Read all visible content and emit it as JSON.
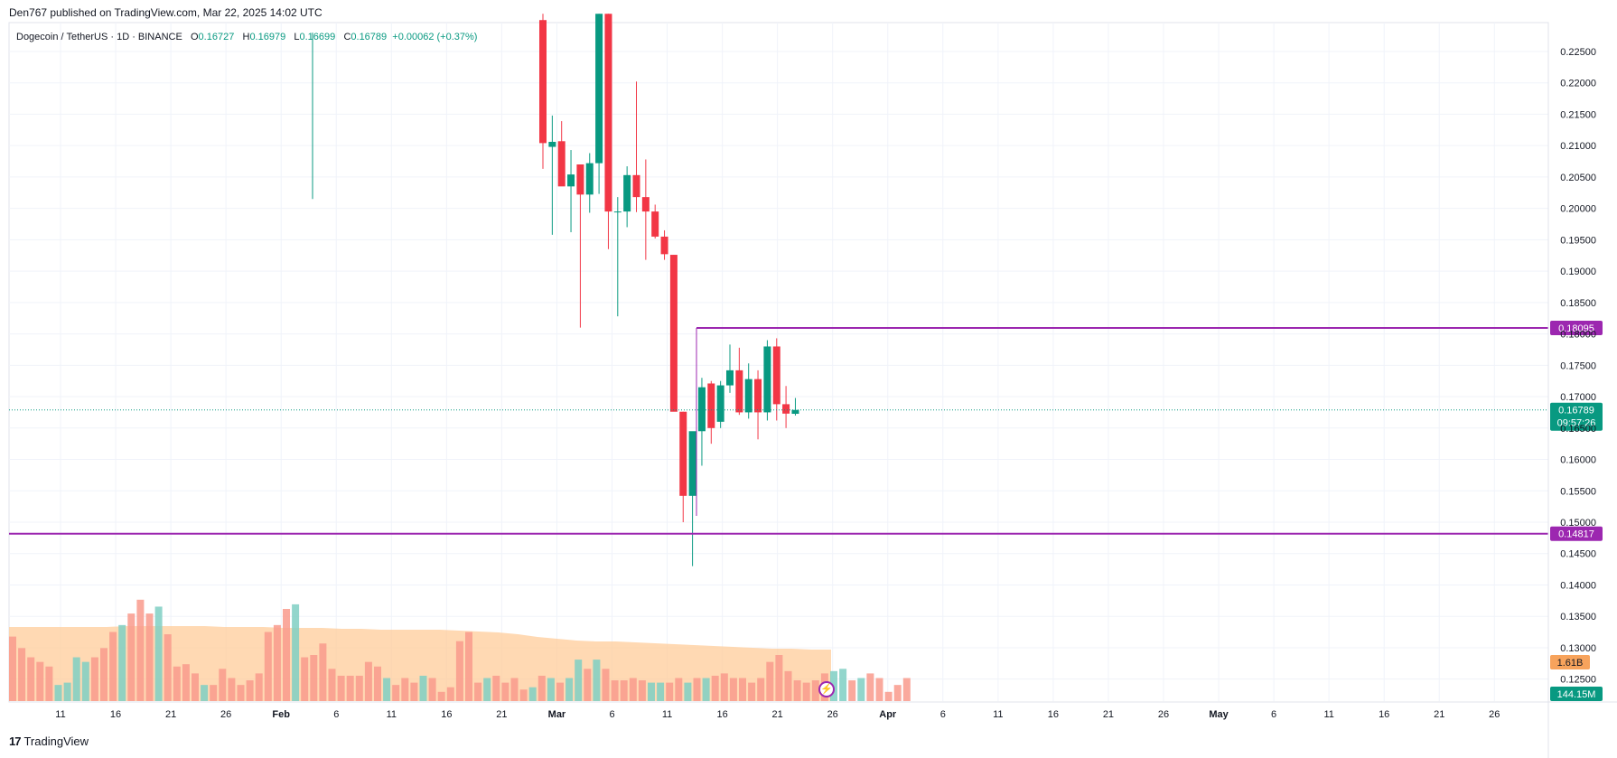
{
  "published": "Den767 published on TradingView.com, Mar 22, 2025 14:02 UTC",
  "legend": {
    "symbol": "Dogecoin / TetherUS · 1D · BINANCE",
    "o_label": "O",
    "o": "0.16727",
    "h_label": "H",
    "h": "0.16979",
    "l_label": "L",
    "l": "0.16699",
    "c_label": "C",
    "c": "0.16789",
    "change": "+0.00062 (+0.37%)"
  },
  "footer": {
    "logo_mark": "17",
    "logo_text": "TradingView"
  },
  "colors": {
    "up": "#089981",
    "down": "#f23645",
    "level": "#9c27b0",
    "volume_ma": "#ffcc99"
  },
  "chart_data": {
    "type": "candlestick",
    "title": "Dogecoin / TetherUS · 1D · BINANCE",
    "ylim": [
      0.1215,
      0.2296
    ],
    "y_ticks": [
      "0.22500",
      "0.22000",
      "0.21500",
      "0.21000",
      "0.20500",
      "0.20000",
      "0.19500",
      "0.19000",
      "0.18500",
      "0.18000",
      "0.17500",
      "0.17000",
      "0.16500",
      "0.16000",
      "0.15500",
      "0.15000",
      "0.14500",
      "0.14000",
      "0.13500",
      "0.13000",
      "0.12500"
    ],
    "x_ticks": [
      "11",
      "16",
      "21",
      "26",
      "Feb",
      "6",
      "11",
      "16",
      "21",
      "Mar",
      "6",
      "11",
      "16",
      "21",
      "26",
      "Apr",
      "6",
      "11",
      "16",
      "21",
      "26",
      "May",
      "6",
      "11",
      "16",
      "21",
      "26"
    ],
    "candles": [
      {
        "o": 0.23,
        "h": 0.231,
        "l": 0.2063,
        "c": 0.2104
      },
      {
        "o": 0.2098,
        "h": 0.2148,
        "l": 0.1958,
        "c": 0.2106
      },
      {
        "o": 0.2107,
        "h": 0.2139,
        "l": 0.2036,
        "c": 0.2035
      },
      {
        "o": 0.2035,
        "h": 0.2093,
        "l": 0.1962,
        "c": 0.2054
      },
      {
        "o": 0.207,
        "h": 0.2069,
        "l": 0.181,
        "c": 0.2022
      },
      {
        "o": 0.2022,
        "h": 0.2088,
        "l": 0.1993,
        "c": 0.2072
      },
      {
        "o": 0.2072,
        "h": 0.231,
        "l": 0.2023,
        "c": 0.231
      },
      {
        "o": 0.231,
        "h": 0.231,
        "l": 0.1935,
        "c": 0.1995
      },
      {
        "o": 0.1995,
        "h": 0.2018,
        "l": 0.1828,
        "c": 0.1995
      },
      {
        "o": 0.1995,
        "h": 0.2067,
        "l": 0.197,
        "c": 0.2053
      },
      {
        "o": 0.2053,
        "h": 0.2202,
        "l": 0.1994,
        "c": 0.2018
      },
      {
        "o": 0.2018,
        "h": 0.2078,
        "l": 0.1918,
        "c": 0.1995
      },
      {
        "o": 0.1995,
        "h": 0.2006,
        "l": 0.1952,
        "c": 0.1955
      },
      {
        "o": 0.1955,
        "h": 0.1965,
        "l": 0.1918,
        "c": 0.1927
      },
      {
        "o": 0.1926,
        "h": 0.1926,
        "l": 0.168,
        "c": 0.1676
      },
      {
        "o": 0.1676,
        "h": 0.1676,
        "l": 0.15,
        "c": 0.1542
      },
      {
        "o": 0.1542,
        "h": 0.1642,
        "l": 0.143,
        "c": 0.1645
      },
      {
        "o": 0.1645,
        "h": 0.173,
        "l": 0.159,
        "c": 0.1715
      },
      {
        "o": 0.1721,
        "h": 0.1725,
        "l": 0.1625,
        "c": 0.165
      },
      {
        "o": 0.166,
        "h": 0.1725,
        "l": 0.165,
        "c": 0.1718
      },
      {
        "o": 0.1718,
        "h": 0.1783,
        "l": 0.1706,
        "c": 0.1742
      },
      {
        "o": 0.1742,
        "h": 0.1778,
        "l": 0.1671,
        "c": 0.1675
      },
      {
        "o": 0.1675,
        "h": 0.1753,
        "l": 0.1665,
        "c": 0.1728
      },
      {
        "o": 0.1728,
        "h": 0.1742,
        "l": 0.1632,
        "c": 0.1675
      },
      {
        "o": 0.1675,
        "h": 0.179,
        "l": 0.1662,
        "c": 0.178
      },
      {
        "o": 0.178,
        "h": 0.1793,
        "l": 0.1662,
        "c": 0.1688
      },
      {
        "o": 0.1688,
        "h": 0.1717,
        "l": 0.165,
        "c": 0.1673
      },
      {
        "o": 0.16727,
        "h": 0.16979,
        "l": 0.16699,
        "c": 0.16789
      }
    ],
    "extra_wick": {
      "h": 0.228,
      "l": 0.2015
    },
    "volumes": [
      28,
      23,
      19,
      17,
      15,
      7,
      8,
      19,
      17,
      19,
      23,
      30,
      33,
      38,
      44,
      38,
      41,
      29,
      15,
      16,
      12,
      7,
      7,
      14,
      10,
      7,
      9,
      12,
      30,
      33,
      40,
      42,
      19,
      20,
      25,
      14,
      11,
      11,
      11,
      17,
      15,
      10,
      7,
      10,
      8,
      11,
      10,
      4,
      6,
      26,
      30,
      8,
      10,
      11,
      8,
      10,
      5,
      6,
      11,
      10,
      8,
      10,
      18,
      14,
      18,
      14,
      9,
      9,
      10,
      9,
      8,
      8,
      8,
      10,
      8,
      10,
      10,
      11,
      12,
      10,
      10,
      8,
      10,
      17,
      20,
      13,
      9,
      8,
      9,
      12,
      13,
      14,
      9,
      10,
      12,
      10,
      4,
      7,
      10
    ],
    "volume_colors_up": [
      false,
      false,
      false,
      false,
      false,
      true,
      true,
      true,
      true,
      false,
      false,
      false,
      true,
      false,
      false,
      false,
      true,
      false,
      false,
      false,
      false,
      true,
      false,
      false,
      false,
      false,
      false,
      false,
      false,
      false,
      false,
      true,
      false,
      false,
      false,
      false,
      false,
      false,
      false,
      false,
      false,
      true,
      false,
      false,
      false,
      true,
      false,
      false,
      false,
      false,
      false,
      false,
      true,
      false,
      false,
      false,
      false,
      true,
      false,
      true,
      false,
      true,
      true,
      false,
      true,
      false,
      false,
      false,
      false,
      false,
      true,
      true,
      false,
      false,
      true,
      false,
      true,
      false,
      false,
      false,
      false,
      false,
      false,
      false,
      false,
      false,
      false,
      false,
      false,
      false,
      true,
      true,
      false,
      true,
      false,
      false,
      false,
      false,
      false
    ],
    "volume_ma_shape": "orange shaded moving average",
    "levels": [
      {
        "label": "0.18095",
        "value": 0.18095
      },
      {
        "label": "0.14817",
        "value": 0.14817
      }
    ],
    "current_price": {
      "label": "0.16789",
      "value": 0.16789,
      "countdown": "09:57:26"
    },
    "volume_labels": {
      "ma": "1.61B",
      "volume": "144.15M"
    }
  }
}
